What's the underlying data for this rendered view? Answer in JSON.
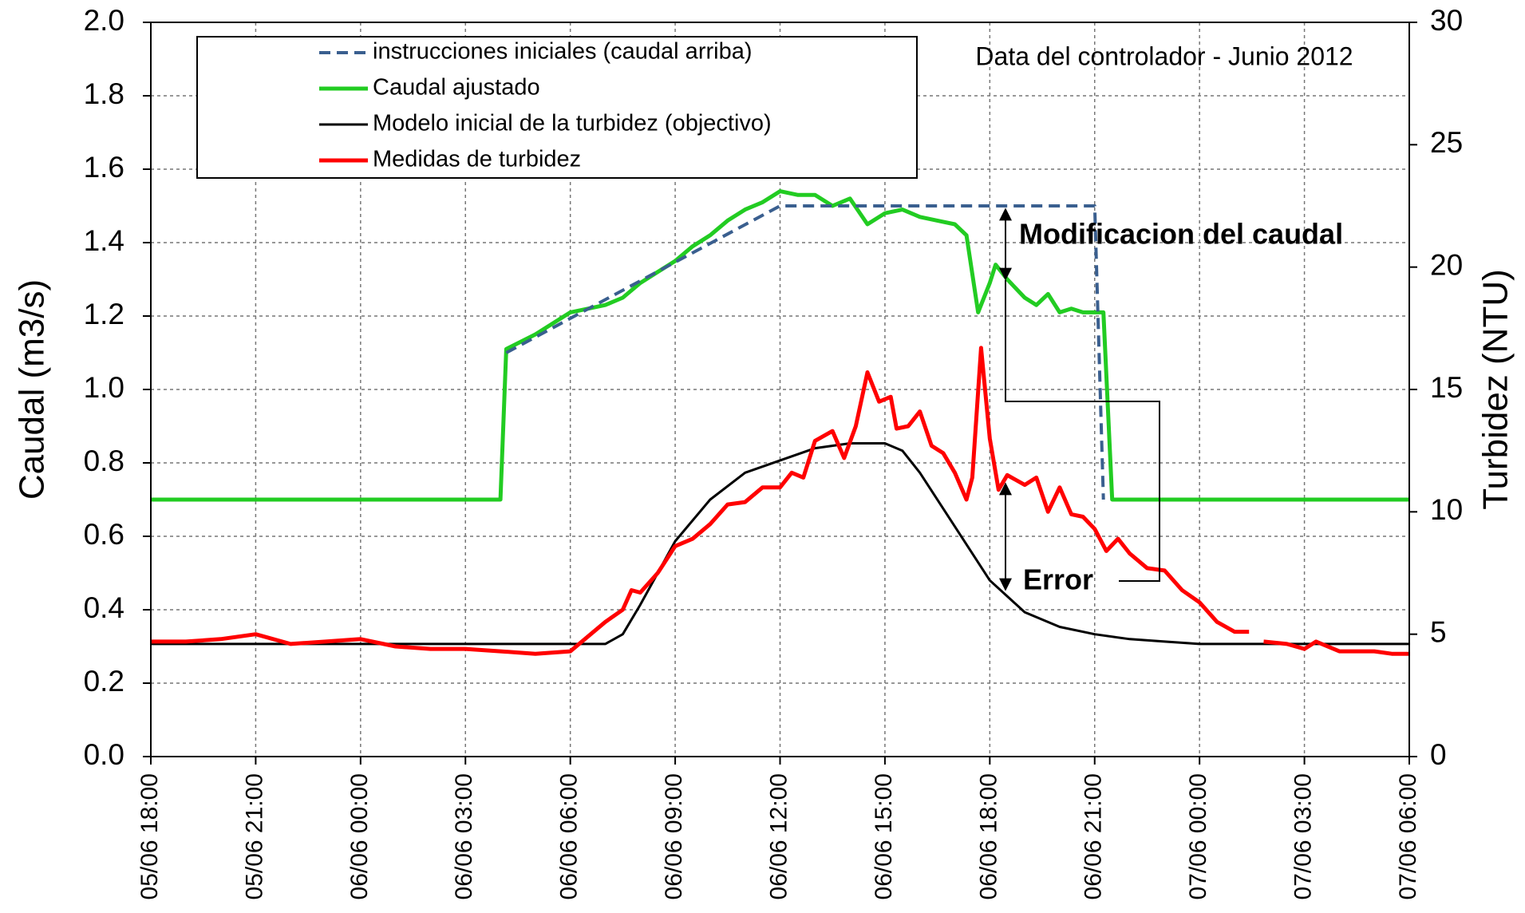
{
  "chart_data": {
    "type": "line",
    "annotations": [
      "Data del controlador - Junio 2012",
      "Modificacion del caudal",
      "Error"
    ],
    "ylabel": "Caudal (m3/s)",
    "y2label": "Turbidez (NTU)",
    "xlim": [
      "05/06 18:00",
      "07/06 06:00"
    ],
    "xticks": [
      "05/06 18:00",
      "05/06 21:00",
      "06/06 00:00",
      "06/06 03:00",
      "06/06 06:00",
      "06/06 09:00",
      "06/06 12:00",
      "06/06 15:00",
      "06/06 18:00",
      "06/06 21:00",
      "07/06 00:00",
      "07/06 03:00",
      "07/06 06:00"
    ],
    "ylim": [
      0,
      2
    ],
    "yticks": [
      {
        "value": 0,
        "label": "0.0"
      },
      0.2,
      0.4,
      0.6,
      0.8,
      {
        "value": 1,
        "label": "1.0"
      },
      1.2,
      1.4,
      1.6,
      1.8,
      {
        "value": 2,
        "label": "2.0"
      }
    ],
    "y2lim": [
      0,
      30
    ],
    "y2ticks": [
      0,
      5,
      10,
      15,
      20,
      25,
      30
    ],
    "grid": true,
    "series": [
      {
        "name": "instrucciones iniciales (caudal arriba)",
        "color": "#3a5f8f",
        "dashed": true,
        "x": [
          "06/06 04:10",
          "06/06 12:00",
          "06/06 21:00",
          "06/06 21:15"
        ],
        "values": [
          1.1,
          1.5,
          1.5,
          0.7
        ]
      },
      {
        "name": "Caudal ajustado",
        "color": "#22cc22",
        "x": [
          "05/06 18:00",
          "06/06 04:00",
          "06/06 04:10",
          "06/06 05:00",
          "06/06 06:00",
          "06/06 06:30",
          "06/06 07:00",
          "06/06 07:30",
          "06/06 08:00",
          "06/06 08:30",
          "06/06 09:00",
          "06/06 09:30",
          "06/06 10:00",
          "06/06 10:30",
          "06/06 11:00",
          "06/06 11:30",
          "06/06 12:00",
          "06/06 12:30",
          "06/06 13:00",
          "06/06 13:30",
          "06/06 14:00",
          "06/06 14:30",
          "06/06 15:00",
          "06/06 15:30",
          "06/06 16:00",
          "06/06 16:30",
          "06/06 17:00",
          "06/06 17:20",
          "06/06 17:40",
          "06/06 18:00",
          "06/06 18:10",
          "06/06 18:30",
          "06/06 19:00",
          "06/06 19:20",
          "06/06 19:40",
          "06/06 20:00",
          "06/06 20:20",
          "06/06 20:40",
          "06/06 21:15",
          "06/06 21:30",
          "07/06 06:00"
        ],
        "values": [
          0.7,
          0.7,
          1.11,
          1.15,
          1.21,
          1.22,
          1.23,
          1.25,
          1.29,
          1.32,
          1.35,
          1.39,
          1.42,
          1.46,
          1.49,
          1.51,
          1.54,
          1.53,
          1.53,
          1.5,
          1.52,
          1.45,
          1.48,
          1.49,
          1.47,
          1.46,
          1.45,
          1.42,
          1.21,
          1.29,
          1.34,
          1.3,
          1.25,
          1.23,
          1.26,
          1.21,
          1.22,
          1.21,
          1.21,
          0.7,
          0.7
        ]
      },
      {
        "name": "Modelo inicial de la turbidez (objectivo)",
        "color": "#000000",
        "axis": "y2",
        "x": [
          "05/06 18:00",
          "06/06 07:00",
          "06/06 07:30",
          "06/06 08:00",
          "06/06 09:00",
          "06/06 10:00",
          "06/06 11:00",
          "06/06 12:00",
          "06/06 13:00",
          "06/06 14:00",
          "06/06 15:00",
          "06/06 15:30",
          "06/06 16:00",
          "06/06 17:00",
          "06/06 18:00",
          "06/06 19:00",
          "06/06 20:00",
          "06/06 21:00",
          "06/06 22:00",
          "06/06 23:00",
          "07/06 00:00",
          "07/06 06:00"
        ],
        "values": [
          4.6,
          4.6,
          5.0,
          6.2,
          8.8,
          10.5,
          11.6,
          12.1,
          12.6,
          12.8,
          12.8,
          12.5,
          11.6,
          9.4,
          7.2,
          5.9,
          5.3,
          5.0,
          4.8,
          4.7,
          4.6,
          4.6
        ]
      },
      {
        "name": "Medidas de turbidez",
        "color": "#ff0000",
        "axis": "y2",
        "x": [
          "05/06 18:00",
          "05/06 19:00",
          "05/06 20:00",
          "05/06 21:00",
          "05/06 22:00",
          "05/06 23:00",
          "06/06 00:00",
          "06/06 01:00",
          "06/06 02:00",
          "06/06 03:00",
          "06/06 04:00",
          "06/06 05:00",
          "06/06 06:00",
          "06/06 06:30",
          "06/06 07:00",
          "06/06 07:30",
          "06/06 07:45",
          "06/06 08:00",
          "06/06 08:30",
          "06/06 09:00",
          "06/06 09:30",
          "06/06 10:00",
          "06/06 10:30",
          "06/06 11:00",
          "06/06 11:30",
          "06/06 12:00",
          "06/06 12:20",
          "06/06 12:40",
          "06/06 13:00",
          "06/06 13:30",
          "06/06 13:50",
          "06/06 14:10",
          "06/06 14:30",
          "06/06 14:50",
          "06/06 15:10",
          "06/06 15:20",
          "06/06 15:40",
          "06/06 16:00",
          "06/06 16:20",
          "06/06 16:40",
          "06/06 17:00",
          "06/06 17:20",
          "06/06 17:30",
          "06/06 17:45",
          "06/06 18:00",
          "06/06 18:15",
          "06/06 18:30",
          "06/06 19:00",
          "06/06 19:20",
          "06/06 19:40",
          "06/06 20:00",
          "06/06 20:20",
          "06/06 20:40",
          "06/06 21:00",
          "06/06 21:20",
          "06/06 21:40",
          "06/06 22:00",
          "06/06 22:30",
          "06/06 23:00",
          "06/06 23:30",
          "07/06 00:00",
          "07/06 00:30",
          "07/06 01:00",
          "07/06 01:25",
          "07/06 01:40",
          "07/06 01:50",
          "07/06 02:30",
          "07/06 03:00",
          "07/06 03:20",
          "07/06 04:00",
          "07/06 05:00",
          "07/06 05:30",
          "07/06 06:00"
        ],
        "values": [
          4.7,
          4.7,
          4.8,
          5.0,
          4.6,
          4.7,
          4.8,
          4.5,
          4.4,
          4.4,
          4.3,
          4.2,
          4.3,
          4.9,
          5.5,
          6.0,
          6.8,
          6.7,
          7.5,
          8.6,
          8.9,
          9.5,
          10.3,
          10.4,
          11.0,
          11.0,
          11.6,
          11.4,
          12.9,
          13.3,
          12.2,
          13.5,
          15.7,
          14.5,
          14.7,
          13.4,
          13.5,
          14.1,
          12.7,
          12.4,
          11.6,
          10.5,
          11.4,
          16.7,
          13.0,
          10.9,
          11.5,
          11.1,
          11.4,
          10.0,
          11.0,
          9.9,
          9.8,
          9.3,
          8.4,
          8.9,
          8.3,
          7.7,
          7.6,
          6.8,
          6.3,
          5.5,
          5.1,
          5.1,
          null,
          4.7,
          4.6,
          4.4,
          4.7,
          4.3,
          4.3,
          4.2,
          4.2
        ]
      }
    ]
  }
}
